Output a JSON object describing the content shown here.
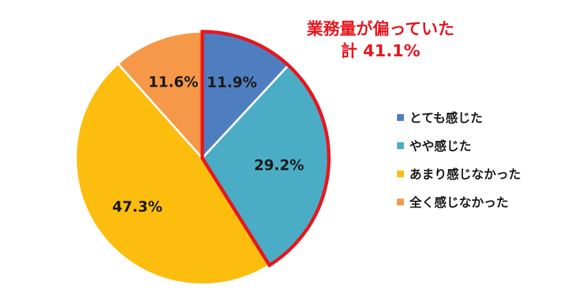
{
  "chart_data": {
    "type": "pie",
    "categories": [
      "とても感じた",
      "やや感じた",
      "あまり感じなかった",
      "全く感じなかった"
    ],
    "values": [
      11.9,
      29.2,
      47.3,
      11.6
    ],
    "value_labels": [
      "11.9%",
      "29.2%",
      "47.3%",
      "11.6%"
    ],
    "colors": [
      "#4f7ec0",
      "#4badc5",
      "#fdbd0f",
      "#f59847"
    ],
    "legend_position": "right",
    "highlight": {
      "categories": [
        "とても感じた",
        "やや感じた"
      ],
      "border_color": "#e8161e",
      "label_line1": "業務量が偏っていた",
      "label_line2": "計 41.1%"
    }
  }
}
